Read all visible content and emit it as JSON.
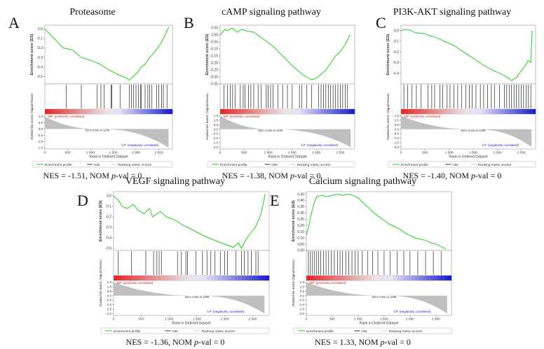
{
  "common": {
    "es_ylabel": "Enrichment score (ES)",
    "rank_ylabel": "Ranked list metric (Signal2Noise)",
    "xlabel": "Rank in Ordered Dataset",
    "pos_label": "'MF' (positively correlated)",
    "neg_label": "'LP' (negatively correlated)",
    "legend": [
      "Enrichment profile",
      "Hits",
      "Ranking metric scores"
    ],
    "nes_prefix": "NES = ",
    "nom_label": "NOM ",
    "p_label": "p",
    "pval_suffix": "-val = 0",
    "colors": {
      "es_line": "#22cc22",
      "hits": "#000000",
      "metric_fill": "#bfbfbf",
      "pos_text": "#cc2222",
      "neg_text": "#2222cc"
    }
  },
  "panels": [
    {
      "letter": "A",
      "title": "Proteasome",
      "nes": "-1.51",
      "zero_cross": "Zero cross at 1149"
    },
    {
      "letter": "B",
      "title": "cAMP signaling pathway",
      "nes": "-1.38",
      "zero_cross": "Zero cross at 1046"
    },
    {
      "letter": "C",
      "title": "PI3K-AKT signaling pathway",
      "nes": "-1.40",
      "zero_cross": "Zero cross at 1499"
    },
    {
      "letter": "D",
      "title": "VEGF signaling pathway",
      "nes": "-1.36",
      "zero_cross": "Zero cross at 1499"
    },
    {
      "letter": "E",
      "title": "Calcium signaling pathway",
      "nes": "1.33",
      "zero_cross": "Zero cross at 1499"
    }
  ],
  "chart_data": [
    {
      "type": "line",
      "panel": "A",
      "title": "Proteasome",
      "xlabel": "Rank in Ordered Dataset",
      "ylabel": "Enrichment score (ES)",
      "xlim": [
        0,
        2800
      ],
      "ylim": [
        -0.58,
        0.04
      ],
      "x_ticks": [
        0,
        500,
        1000,
        1500,
        2000,
        2500
      ],
      "y_ticks": [
        0.0,
        -0.1,
        -0.2,
        -0.3,
        -0.4,
        -0.5
      ],
      "y_tick_labels": [
        "0.0",
        "-0.1",
        "-0.2",
        "-0.3",
        "-0.4",
        "-0.5"
      ],
      "es_x": [
        0,
        200,
        300,
        400,
        600,
        700,
        800,
        1000,
        1200,
        1400,
        1600,
        1800,
        1850,
        1900,
        2050,
        2100,
        2200,
        2300,
        2400,
        2500,
        2550,
        2650,
        2700,
        2720
      ],
      "es_y": [
        0,
        -0.1,
        -0.15,
        -0.2,
        -0.22,
        -0.26,
        -0.3,
        -0.33,
        -0.37,
        -0.43,
        -0.48,
        -0.52,
        -0.54,
        -0.52,
        -0.45,
        -0.41,
        -0.37,
        -0.3,
        -0.25,
        -0.18,
        -0.15,
        -0.05,
        0.0,
        0.02
      ],
      "hits": [
        470,
        800,
        1150,
        1230,
        1300,
        1450,
        1470,
        1650,
        1850,
        1900,
        1950,
        2000,
        2050,
        2100,
        2120,
        2200,
        2260,
        2300,
        2350,
        2450,
        2500,
        2560,
        2600,
        2680
      ],
      "metric_ylim": [
        -1.6,
        1.2
      ],
      "metric_ticks": [
        1.0,
        0.5,
        0.0,
        -0.5,
        -1.0,
        -1.5
      ],
      "metric_tick_labels": [
        "1.0",
        "0.5",
        "0.0",
        "-0.5",
        "-1.0",
        "-1.5"
      ],
      "metric_start": 1.0,
      "metric_end": -1.5,
      "zero_cross": 1149
    },
    {
      "type": "line",
      "panel": "B",
      "title": "cAMP signaling pathway",
      "xlabel": "Rank in Ordered Dataset",
      "ylabel": "Enrichment score (ES)",
      "xlim": [
        0,
        2800
      ],
      "ylim": [
        -0.35,
        0.07
      ],
      "x_ticks": [
        0,
        500,
        1000,
        1500,
        2000,
        2500
      ],
      "y_ticks": [
        0.05,
        0.0,
        -0.05,
        -0.1,
        -0.15,
        -0.2,
        -0.25,
        -0.3,
        -0.35
      ],
      "y_tick_labels": [
        "0.05",
        "0.00",
        "-0.05",
        "-0.10",
        "-0.15",
        "-0.20",
        "-0.25",
        "-0.30",
        "-0.35"
      ],
      "es_x": [
        0,
        50,
        100,
        150,
        250,
        350,
        450,
        550,
        700,
        900,
        1100,
        1300,
        1500,
        1700,
        1800,
        1900,
        2000,
        2100,
        2200,
        2300,
        2400,
        2500,
        2600,
        2700
      ],
      "es_y": [
        0.0,
        0.02,
        0.04,
        0.03,
        0.05,
        0.02,
        0.04,
        0.03,
        0.02,
        -0.03,
        -0.08,
        -0.15,
        -0.22,
        -0.28,
        -0.3,
        -0.32,
        -0.31,
        -0.28,
        -0.25,
        -0.2,
        -0.15,
        -0.12,
        -0.07,
        0.0
      ],
      "hits": [
        80,
        150,
        210,
        260,
        310,
        420,
        480,
        520,
        590,
        640,
        700,
        790,
        850,
        960,
        1000,
        1050,
        1100,
        1200,
        1300,
        1400,
        1500,
        1650,
        1700,
        1800,
        1900,
        2050,
        2100,
        2150,
        2200,
        2250,
        2300,
        2350,
        2400,
        2450,
        2500,
        2550,
        2600,
        2650
      ],
      "metric_ylim": [
        -2.2,
        1.7
      ],
      "metric_ticks": [
        1.5,
        1.0,
        0.5,
        0.0,
        -0.5,
        -1.0,
        -1.5,
        -2.0
      ],
      "metric_tick_labels": [
        "1.5",
        "1.0",
        "0.5",
        "0.0",
        "-0.5",
        "-1.0",
        "-1.5",
        "-2.0"
      ],
      "metric_start": 1.5,
      "metric_end": -2.0,
      "zero_cross": 1046
    },
    {
      "type": "line",
      "panel": "C",
      "title": "PI3K-AKT signaling pathway",
      "xlabel": "Rank in Ordered Dataset",
      "ylabel": "Enrichment score (ES)",
      "xlim": [
        0,
        2800
      ],
      "ylim": [
        -0.5,
        0.05
      ],
      "x_ticks": [
        0,
        500,
        1000,
        1500,
        2000,
        2500
      ],
      "y_ticks": [
        0.0,
        -0.1,
        -0.2,
        -0.3,
        -0.4
      ],
      "y_tick_labels": [
        "0.0",
        "-0.1",
        "-0.2",
        "-0.3",
        "-0.4"
      ],
      "es_x": [
        0,
        100,
        200,
        300,
        500,
        600,
        700,
        900,
        1100,
        1300,
        1500,
        1700,
        1900,
        2100,
        2250,
        2300,
        2400,
        2500,
        2600,
        2650,
        2700,
        2730
      ],
      "es_y": [
        0.0,
        0.01,
        0.0,
        -0.02,
        -0.03,
        -0.05,
        -0.06,
        -0.1,
        -0.14,
        -0.2,
        -0.26,
        -0.32,
        -0.37,
        -0.41,
        -0.45,
        -0.47,
        -0.44,
        -0.38,
        -0.32,
        -0.28,
        -0.3,
        0.0
      ],
      "hits": [
        60,
        140,
        230,
        320,
        420,
        560,
        640,
        700,
        810,
        870,
        960,
        1020,
        1100,
        1180,
        1260,
        1350,
        1420,
        1480,
        1560,
        1650,
        1720,
        1800,
        1880,
        1950,
        2050,
        2150,
        2200,
        2250,
        2300,
        2350,
        2400,
        2450,
        2500,
        2550,
        2600,
        2650,
        2700
      ],
      "metric_ylim": [
        -2.2,
        1.7
      ],
      "metric_ticks": [
        1.5,
        1.0,
        0.5,
        0.0,
        -0.5,
        -1.0,
        -1.5,
        -2.0
      ],
      "metric_tick_labels": [
        "1.5",
        "1.0",
        "0.5",
        "0.0",
        "-0.5",
        "-1.0",
        "-1.5",
        "-2.0"
      ],
      "metric_start": 1.5,
      "metric_end": -2.0,
      "zero_cross": 1499
    },
    {
      "type": "line",
      "panel": "D",
      "title": "VEGF signaling pathway",
      "xlabel": "Rank in Ordered Dataset",
      "ylabel": "Enrichment score (ES)",
      "xlim": [
        0,
        2800
      ],
      "ylim": [
        -0.52,
        0.04
      ],
      "x_ticks": [
        0,
        500,
        1000,
        1500,
        2000,
        2500
      ],
      "y_ticks": [
        0.0,
        -0.1,
        -0.2,
        -0.3,
        -0.4,
        -0.5
      ],
      "y_tick_labels": [
        "0.0",
        "-0.1",
        "-0.2",
        "-0.3",
        "-0.4",
        "-0.5"
      ],
      "es_x": [
        0,
        100,
        150,
        250,
        350,
        450,
        550,
        650,
        700,
        750,
        850,
        950,
        1100,
        1250,
        1400,
        1550,
        1700,
        1850,
        2000,
        2150,
        2250,
        2300,
        2400,
        2550,
        2650,
        2700,
        2730
      ],
      "es_y": [
        0.0,
        -0.05,
        -0.1,
        -0.12,
        -0.08,
        -0.14,
        -0.17,
        -0.12,
        -0.2,
        -0.18,
        -0.15,
        -0.2,
        -0.23,
        -0.28,
        -0.32,
        -0.36,
        -0.4,
        -0.43,
        -0.46,
        -0.49,
        -0.45,
        -0.5,
        -0.4,
        -0.3,
        -0.18,
        -0.05,
        0.02
      ],
      "hits": [
        80,
        320,
        580,
        720,
        780,
        820,
        860,
        1150,
        1220,
        1300,
        1330,
        1480,
        1600,
        1680,
        1750,
        1820,
        1920,
        2000,
        2050,
        2200,
        2300,
        2350,
        2420,
        2480,
        2560,
        2600
      ],
      "metric_ylim": [
        -2.2,
        1.7
      ],
      "metric_ticks": [
        1.5,
        1.0,
        0.5,
        0.0,
        -0.5,
        -1.0,
        -1.5,
        -2.0
      ],
      "metric_tick_labels": [
        "1.5",
        "1.0",
        "0.5",
        "0.0",
        "-0.5",
        "-1.0",
        "-1.5",
        "-2.0"
      ],
      "metric_start": 1.5,
      "metric_end": -2.0,
      "zero_cross": 1499
    },
    {
      "type": "line",
      "panel": "E",
      "title": "Calcium signaling pathway",
      "xlabel": "Rank in Ordered Dataset",
      "ylabel": "Enrichment score (ES)",
      "xlim": [
        0,
        2800
      ],
      "ylim": [
        0.0,
        0.47
      ],
      "x_ticks": [
        0,
        500,
        1000,
        1500,
        2000,
        2500
      ],
      "y_ticks": [
        0.45,
        0.4,
        0.35,
        0.3,
        0.25,
        0.2,
        0.15,
        0.1,
        0.05,
        0.0
      ],
      "y_tick_labels": [
        "0.45",
        "0.40",
        "0.35",
        "0.30",
        "0.25",
        "0.20",
        "0.15",
        "0.10",
        "0.05",
        "0.00"
      ],
      "es_x": [
        0,
        50,
        100,
        150,
        200,
        300,
        400,
        500,
        600,
        700,
        800,
        900,
        1000,
        1100,
        1200,
        1300,
        1400,
        1500,
        1600,
        1700,
        1800,
        1900,
        2000,
        2100,
        2200,
        2300,
        2400,
        2500,
        2600,
        2700
      ],
      "es_y": [
        0.12,
        0.2,
        0.3,
        0.38,
        0.43,
        0.44,
        0.43,
        0.44,
        0.45,
        0.44,
        0.45,
        0.44,
        0.42,
        0.38,
        0.34,
        0.3,
        0.27,
        0.24,
        0.21,
        0.19,
        0.17,
        0.14,
        0.12,
        0.1,
        0.09,
        0.08,
        0.06,
        0.05,
        0.03,
        0.01
      ],
      "hits": [
        40,
        80,
        120,
        160,
        200,
        240,
        280,
        330,
        380,
        430,
        480,
        540,
        600,
        650,
        700,
        760,
        820,
        880,
        940,
        1000,
        1080,
        1180,
        1280,
        1380,
        1500,
        1620,
        1750,
        1880,
        2000,
        2150,
        2300,
        2450,
        2600
      ],
      "metric_ylim": [
        -2.2,
        1.7
      ],
      "metric_ticks": [
        1.5,
        1.0,
        0.5,
        0.0,
        -0.5,
        -1.0,
        -1.5,
        -2.0
      ],
      "metric_tick_labels": [
        "1.5",
        "1.0",
        "0.5",
        "0.0",
        "-0.5",
        "-1.0",
        "-1.5",
        "-2.0"
      ],
      "metric_start": 1.5,
      "metric_end": -2.0,
      "zero_cross": 1499
    }
  ]
}
